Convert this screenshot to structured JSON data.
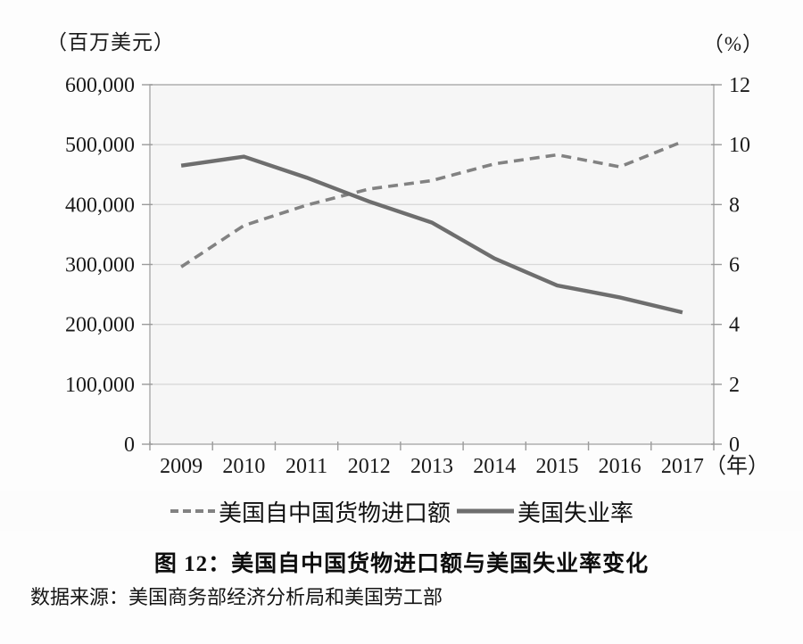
{
  "caption": "图 12：美国自中国货物进口额与美国失业率变化",
  "source": "数据来源：美国商务部经济分析局和美国劳工部",
  "chart_data": {
    "type": "line",
    "title": "图 12：美国自中国货物进口额与美国失业率变化",
    "x": [
      "2009",
      "2010",
      "2011",
      "2012",
      "2013",
      "2014",
      "2015",
      "2016",
      "2017"
    ],
    "x_axis_suffix": "（年）",
    "grid": "horizontal",
    "legend_position": "bottom",
    "plot_bg": "#f6f6f6",
    "frame_color": "#b3b3b3",
    "grid_color": "#d9d9d9",
    "tick_color": "#9b9b9b",
    "left_axis": {
      "unit": "（百万美元）",
      "min": 0,
      "max": 600000,
      "step": 100000,
      "tick_labels": [
        "0",
        "100,000",
        "200,000",
        "300,000",
        "400,000",
        "500,000",
        "600,000"
      ]
    },
    "right_axis": {
      "unit": "（%）",
      "min": 0,
      "max": 12,
      "step": 2,
      "tick_labels": [
        "0",
        "2",
        "4",
        "6",
        "8",
        "10",
        "12"
      ]
    },
    "series": [
      {
        "name": "美国自中国货物进口额",
        "axis": "left",
        "style": "dashed",
        "color": "#828282",
        "values": [
          296000,
          365000,
          399000,
          426000,
          440000,
          468000,
          483000,
          463000,
          505000
        ]
      },
      {
        "name": "美国失业率",
        "axis": "right",
        "style": "solid",
        "color": "#6e6e6e",
        "values": [
          9.3,
          9.6,
          8.9,
          8.1,
          7.4,
          6.2,
          5.3,
          4.9,
          4.4
        ]
      }
    ]
  }
}
